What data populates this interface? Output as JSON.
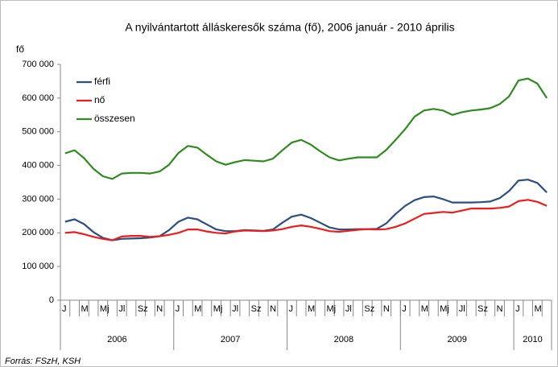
{
  "chart_data": {
    "type": "line",
    "title": "A nyilvántartott álláskeresők száma (fő), 2006 január - 2010 április",
    "y_label": "fő",
    "source": "Forrás: FSzH, KSH",
    "categories": [
      "J",
      null,
      "M",
      null,
      "Mj",
      null,
      "Jl",
      null,
      "Sz",
      null,
      "N",
      null,
      "J",
      null,
      "M",
      null,
      "Mj",
      null,
      "Jl",
      null,
      "Sz",
      null,
      "N",
      null,
      "J",
      null,
      "M",
      null,
      "Mj",
      null,
      "Jl",
      null,
      "Sz",
      null,
      "N",
      null,
      "J",
      null,
      "M",
      null,
      "Mj",
      null,
      "Jl",
      null,
      "Sz",
      null,
      "N",
      null,
      "J",
      null,
      "M",
      null
    ],
    "year_groups": [
      {
        "label": "2006",
        "span": 12
      },
      {
        "label": "2007",
        "span": 12
      },
      {
        "label": "2008",
        "span": 12
      },
      {
        "label": "2009",
        "span": 12
      },
      {
        "label": "2010",
        "span": 4
      }
    ],
    "ylim": [
      0,
      700000
    ],
    "yticks": [
      0,
      {
        "value": 100000,
        "label": "100 000"
      },
      {
        "value": 200000,
        "label": "200 000"
      },
      {
        "value": 300000,
        "label": "300 000"
      },
      {
        "value": 400000,
        "label": "400 000"
      },
      {
        "value": 500000,
        "label": "500 000"
      },
      {
        "value": 600000,
        "label": "600 000"
      },
      {
        "value": 700000,
        "label": "700 000"
      }
    ],
    "grid": false,
    "legend": "upper left",
    "series": [
      {
        "name": "férfi",
        "color": "#2b4f81",
        "values": [
          233000,
          240000,
          226000,
          202000,
          185000,
          178000,
          182000,
          183000,
          184000,
          186000,
          190000,
          208000,
          233000,
          245000,
          240000,
          225000,
          210000,
          205000,
          205000,
          208000,
          207000,
          206000,
          210000,
          230000,
          248000,
          254000,
          244000,
          230000,
          216000,
          210000,
          210000,
          211000,
          211000,
          212000,
          228000,
          256000,
          280000,
          297000,
          306000,
          308000,
          300000,
          290000,
          290000,
          290000,
          291000,
          293000,
          303000,
          324000,
          355000,
          358000,
          348000,
          320000
        ]
      },
      {
        "name": "nő",
        "color": "#ee1c1c",
        "values": [
          200000,
          202000,
          196000,
          188000,
          182000,
          178000,
          189000,
          191000,
          191000,
          188000,
          190000,
          194000,
          200000,
          210000,
          210000,
          204000,
          200000,
          198000,
          204000,
          207000,
          206000,
          205000,
          207000,
          211000,
          218000,
          222000,
          218000,
          212000,
          205000,
          203000,
          206000,
          209000,
          211000,
          210000,
          211000,
          218000,
          228000,
          242000,
          256000,
          259000,
          262000,
          260000,
          266000,
          272000,
          272000,
          272000,
          274000,
          278000,
          294000,
          298000,
          292000,
          280000
        ]
      },
      {
        "name": "összesen",
        "color": "#2f8a1f",
        "values": [
          436000,
          445000,
          422000,
          390000,
          368000,
          360000,
          376000,
          378000,
          378000,
          376000,
          382000,
          402000,
          437000,
          458000,
          453000,
          432000,
          412000,
          402000,
          410000,
          416000,
          414000,
          412000,
          420000,
          445000,
          468000,
          476000,
          462000,
          442000,
          424000,
          415000,
          420000,
          424000,
          424000,
          424000,
          446000,
          476000,
          508000,
          545000,
          563000,
          568000,
          563000,
          550000,
          558000,
          563000,
          566000,
          570000,
          582000,
          605000,
          652000,
          658000,
          643000,
          600000
        ]
      }
    ]
  }
}
